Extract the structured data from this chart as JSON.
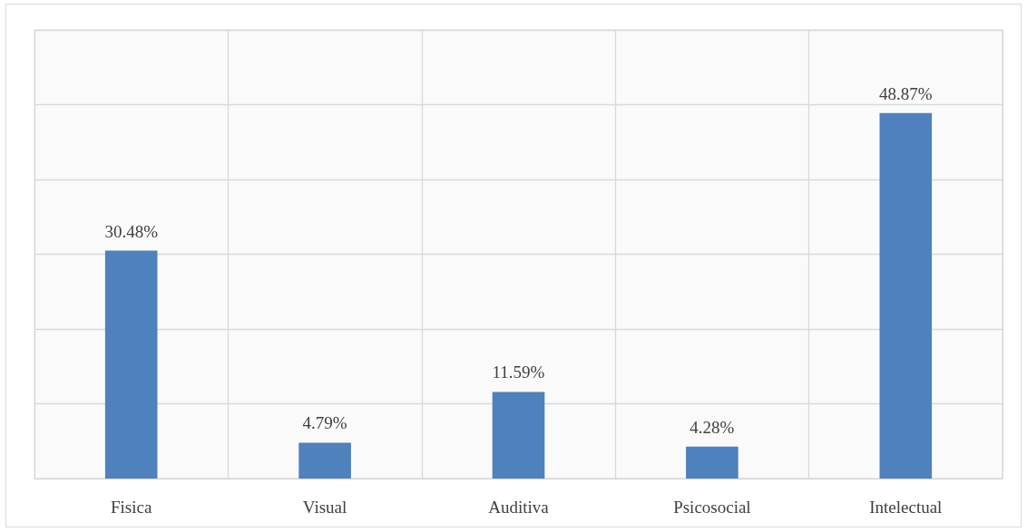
{
  "chart_data": {
    "type": "bar",
    "categories": [
      "Fisica",
      "Visual",
      "Auditiva",
      "Psicosocial",
      "Intelectual"
    ],
    "values": [
      30.48,
      4.79,
      11.59,
      4.28,
      48.87
    ],
    "color": "#4f81bd",
    "value_labels": [
      "30.48%",
      "4.79%",
      "11.59%",
      "4.28%",
      "48.87%"
    ],
    "ylim": [
      0,
      60
    ],
    "yticks": [
      {
        "value": 0,
        "label": null
      },
      {
        "value": 10,
        "label": null
      },
      {
        "value": 20,
        "label": null
      },
      {
        "value": 30,
        "label": null
      },
      {
        "value": 40,
        "label": null
      },
      {
        "value": 50,
        "label": null
      },
      {
        "value": 60,
        "label": null
      }
    ],
    "tick_labels": "x",
    "grid": true
  }
}
